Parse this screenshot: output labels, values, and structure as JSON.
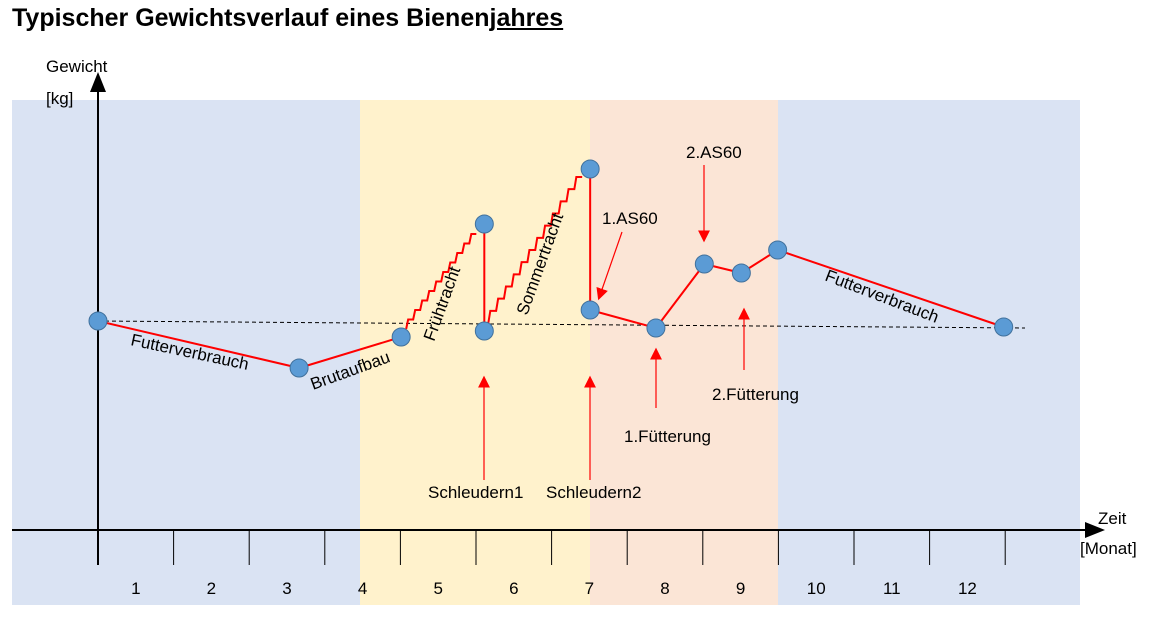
{
  "title_main": "Typischer Gewichtsverlauf eines Bienen",
  "title_underlined": "jahres",
  "chart_data": {
    "type": "line",
    "title": "Typischer Gewichtsverlauf eines Bienenjahres",
    "ylabel": [
      "Gewicht",
      "[kg]"
    ],
    "xlabel": [
      "Zeit",
      "[Monat]"
    ],
    "x_ticks": [
      "1",
      "2",
      "3",
      "4",
      "5",
      "6",
      "7",
      "8",
      "9",
      "10",
      "11",
      "12"
    ],
    "season_colors": [
      "#dae3f3",
      "#fff2cc",
      "#fbe5d6",
      "#dae3f3"
    ],
    "line_color": "#ff0000",
    "marker_color": "#5b9bd5",
    "points": [
      {
        "x": 0,
        "w": 0
      },
      {
        "x": 2.66,
        "w": -4.7
      },
      {
        "x": 4.01,
        "w": -1.6
      },
      {
        "x": 5.11,
        "w": -1.0
      },
      {
        "x": 5.11,
        "w": 9.7
      },
      {
        "x": 6.51,
        "w": 15.2
      },
      {
        "x": 6.51,
        "w": 1.1
      },
      {
        "x": 7.38,
        "w": -0.7
      },
      {
        "x": 8.02,
        "w": 5.7
      },
      {
        "x": 8.51,
        "w": 4.8
      },
      {
        "x": 8.99,
        "w": 7.1
      },
      {
        "x": 11.98,
        "w": -0.6
      }
    ],
    "phase_labels": [
      "Futterverbrauch",
      "Brutaufbau",
      "Frühtracht",
      "Sommertracht",
      "Futterverbrauch"
    ],
    "annotations": [
      "Schleudern1",
      "Schleudern2",
      "1.AS60",
      "2.AS60",
      "1.Fütterung",
      "2.Fütterung"
    ]
  }
}
